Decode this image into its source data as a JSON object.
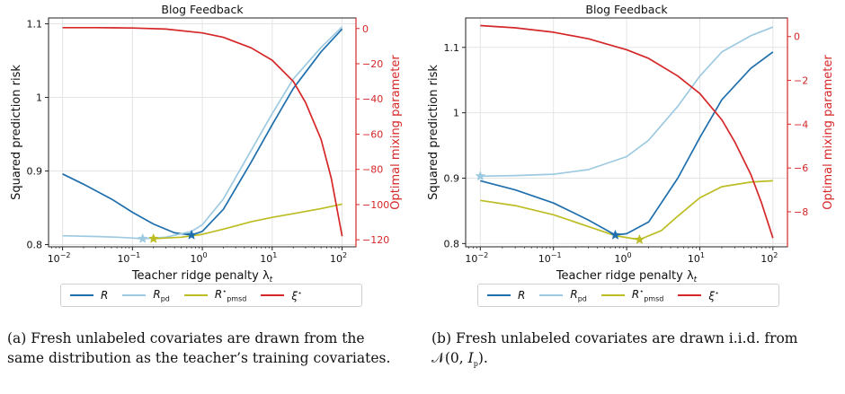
{
  "chart_data": [
    {
      "type": "line",
      "title": "Blog Feedback",
      "xlabel": "Teacher ridge penalty λt",
      "ylabel": "Squared prediction risk",
      "y2label": "Optimal mixing parameter",
      "x_scale": "log",
      "xlim": [
        0.0063,
        158
      ],
      "x_ticks": [
        0.01,
        0.1,
        1,
        10,
        100
      ],
      "x_tick_labels": [
        "10",
        "10",
        "10",
        "10",
        "10"
      ],
      "x_tick_exps": [
        "−2",
        "−1",
        "0",
        "1",
        "2"
      ],
      "ylim": [
        0.797,
        1.108
      ],
      "y_ticks": [
        0.8,
        0.9,
        1.0,
        1.1
      ],
      "y_tick_labels": [
        "0.8",
        "0.9",
        "1",
        "1.1"
      ],
      "y2lim": [
        -124,
        6
      ],
      "y2_ticks": [
        0,
        -20,
        -40,
        -60,
        -80,
        -100,
        -120
      ],
      "y2_tick_labels": [
        "0",
        "−20",
        "−40",
        "−60",
        "−80",
        "−100",
        "−120"
      ],
      "grid": true,
      "series": [
        {
          "name": "R",
          "color": "#1f6fad",
          "axis": "left",
          "x": [
            0.01,
            0.02,
            0.05,
            0.1,
            0.2,
            0.4,
            0.7,
            1,
            2,
            5,
            10,
            20,
            50,
            100
          ],
          "values": [
            0.896,
            0.882,
            0.862,
            0.844,
            0.828,
            0.816,
            0.813,
            0.818,
            0.848,
            0.912,
            0.963,
            1.012,
            1.062,
            1.093
          ]
        },
        {
          "name": "R_pd",
          "color": "#9ecae1",
          "axis": "left",
          "x": [
            0.01,
            0.03,
            0.06,
            0.1,
            0.14,
            0.3,
            0.7,
            1,
            2,
            5,
            10,
            20,
            50,
            100
          ],
          "values": [
            0.812,
            0.811,
            0.81,
            0.809,
            0.808,
            0.81,
            0.818,
            0.827,
            0.862,
            0.928,
            0.978,
            1.025,
            1.068,
            1.096
          ]
        },
        {
          "name": "R*_pmsd",
          "color": "#bcbd22",
          "axis": "left",
          "x": [
            0.2,
            0.3,
            0.5,
            1,
            2,
            5,
            10,
            20,
            50,
            100
          ],
          "values": [
            0.808,
            0.809,
            0.81,
            0.814,
            0.821,
            0.831,
            0.837,
            0.842,
            0.849,
            0.855
          ]
        },
        {
          "name": "ξ*",
          "color": "#d62728",
          "axis": "right",
          "x": [
            0.01,
            0.03,
            0.1,
            0.3,
            1,
            2,
            5,
            10,
            20,
            30,
            50,
            70,
            100
          ],
          "values": [
            0.5,
            0.5,
            0.3,
            -0.3,
            -2.5,
            -5,
            -11,
            -18,
            -30,
            -42,
            -63,
            -85,
            -118
          ]
        }
      ],
      "markers": [
        {
          "series": "R",
          "x": 0.7,
          "y": 0.813,
          "color": "#1f6fad"
        },
        {
          "series": "R_pd",
          "x": 0.14,
          "y": 0.808,
          "color": "#9ecae1"
        },
        {
          "series": "R*_pmsd",
          "x": 0.2,
          "y": 0.808,
          "color": "#bcbd22"
        }
      ]
    },
    {
      "type": "line",
      "title": "Blog Feedback",
      "xlabel": "Teacher ridge penalty λt",
      "ylabel": "Squared prediction risk",
      "y2label": "Optimal mixing parameter",
      "x_scale": "log",
      "xlim": [
        0.0063,
        158
      ],
      "x_ticks": [
        0.01,
        0.1,
        1,
        10,
        100
      ],
      "x_tick_labels": [
        "10",
        "10",
        "10",
        "10",
        "10"
      ],
      "x_tick_exps": [
        "−2",
        "−1",
        "0",
        "1",
        "2"
      ],
      "ylim": [
        0.795,
        1.145
      ],
      "y_ticks": [
        0.8,
        0.9,
        1.0,
        1.1
      ],
      "y_tick_labels": [
        "0.8",
        "0.9",
        "1",
        "1.1"
      ],
      "y2lim": [
        -9.6,
        0.85
      ],
      "y2_ticks": [
        0,
        -2,
        -4,
        -6,
        -8
      ],
      "y2_tick_labels": [
        "0",
        "−2",
        "−4",
        "−6",
        "−8"
      ],
      "grid": true,
      "series": [
        {
          "name": "R",
          "color": "#1f6fad",
          "axis": "left",
          "x": [
            0.01,
            0.03,
            0.1,
            0.3,
            0.7,
            1,
            2,
            5,
            10,
            20,
            50,
            100
          ],
          "values": [
            0.896,
            0.882,
            0.862,
            0.836,
            0.813,
            0.815,
            0.833,
            0.9,
            0.962,
            1.02,
            1.068,
            1.093
          ]
        },
        {
          "name": "R_pd",
          "color": "#9ecae1",
          "axis": "left",
          "x": [
            0.01,
            0.03,
            0.1,
            0.3,
            1,
            2,
            5,
            10,
            20,
            50,
            100
          ],
          "values": [
            0.903,
            0.904,
            0.906,
            0.913,
            0.933,
            0.958,
            1.01,
            1.056,
            1.093,
            1.118,
            1.131
          ]
        },
        {
          "name": "R*_pmsd",
          "color": "#bcbd22",
          "axis": "left",
          "x": [
            0.01,
            0.03,
            0.1,
            0.3,
            0.7,
            1.5,
            3,
            5,
            10,
            20,
            50,
            100
          ],
          "values": [
            0.866,
            0.858,
            0.844,
            0.826,
            0.812,
            0.806,
            0.82,
            0.842,
            0.87,
            0.887,
            0.894,
            0.896
          ]
        },
        {
          "name": "ξ*",
          "color": "#d62728",
          "axis": "right",
          "x": [
            0.01,
            0.03,
            0.1,
            0.3,
            1,
            2,
            5,
            10,
            20,
            30,
            50,
            70,
            100
          ],
          "values": [
            0.5,
            0.4,
            0.2,
            -0.1,
            -0.6,
            -1.0,
            -1.8,
            -2.6,
            -3.8,
            -4.8,
            -6.3,
            -7.6,
            -9.2
          ]
        }
      ],
      "markers": [
        {
          "series": "R",
          "x": 0.7,
          "y": 0.813,
          "color": "#1f6fad"
        },
        {
          "series": "R_pd",
          "x": 0.01,
          "y": 0.903,
          "color": "#9ecae1"
        },
        {
          "series": "R*_pmsd",
          "x": 1.5,
          "y": 0.806,
          "color": "#bcbd22"
        }
      ]
    }
  ],
  "legend": [
    {
      "base": "R",
      "sub": "",
      "sup": "",
      "color": "#1f6fad"
    },
    {
      "base": "R",
      "sub": "pd",
      "sup": "",
      "color": "#9ecae1"
    },
    {
      "base": "R",
      "sub": "pmsd",
      "sup": "⋆",
      "color": "#bcbd22"
    },
    {
      "base": "ξ",
      "sub": "",
      "sup": "⋆",
      "color": "#d62728"
    }
  ],
  "captions": {
    "a": "(a) Fresh unlabeled covariates are drawn from the same distribution as the teacher’s training covariates.",
    "b": "(b) Fresh unlabeled covariates are drawn i.i.d. from 𝒩(0, I_p)."
  },
  "caption_b_parts": {
    "prefix": "(b) Fresh unlabeled covariates are drawn i.i.d. from ",
    "math_n": "𝒩",
    "math_open": "(0, ",
    "math_i": "I",
    "math_sub": "p",
    "math_close": ")."
  }
}
